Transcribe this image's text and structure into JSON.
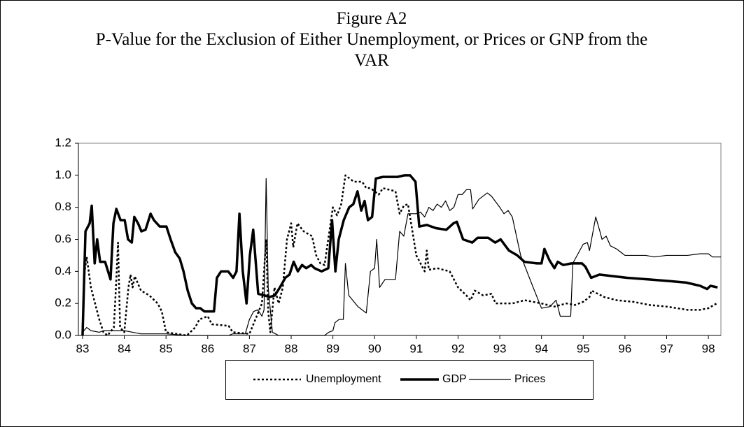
{
  "chart_data": {
    "type": "line",
    "title": [
      "Figure A2",
      "P-Value for the Exclusion of Either Unemployment, or Prices or GNP from the",
      "VAR"
    ],
    "xlim": [
      82.9,
      98.3
    ],
    "xticks": [
      83,
      84,
      85,
      86,
      87,
      88,
      89,
      90,
      91,
      92,
      93,
      94,
      95,
      96,
      97,
      98
    ],
    "ylim": [
      0,
      1.2
    ],
    "yticks": [
      {
        "value": 0,
        "label": "0.0"
      },
      0.2,
      0.4,
      0.6,
      0.8,
      {
        "value": 1,
        "label": "1.0"
      },
      1.2
    ],
    "grid": false,
    "legend": "bottom",
    "series": [
      {
        "name": "Unemployment",
        "color": "#000000",
        "style": "dotted",
        "x": [
          83.0,
          83.05,
          83.1,
          83.2,
          83.3,
          83.4,
          83.5,
          83.6,
          83.75,
          83.8,
          83.85,
          83.9,
          84.0,
          84.1,
          84.15,
          84.2,
          84.25,
          84.4,
          84.6,
          84.8,
          84.9,
          85.0,
          85.5,
          85.7,
          85.8,
          86.0,
          86.1,
          86.5,
          86.6,
          87.0,
          87.3,
          87.4,
          87.45,
          87.5,
          87.6,
          87.7,
          87.8,
          87.9,
          88.0,
          88.05,
          88.15,
          88.3,
          88.5,
          88.6,
          88.7,
          88.8,
          89.0,
          89.1,
          89.2,
          89.3,
          89.5,
          89.7,
          89.8,
          89.9,
          90.1,
          90.2,
          90.5,
          90.6,
          90.7,
          90.8,
          91.0,
          91.1,
          91.2,
          91.25,
          91.3,
          91.5,
          91.8,
          92.0,
          92.2,
          92.3,
          92.4,
          92.6,
          92.8,
          92.9,
          93.3,
          93.6,
          94.0,
          94.3,
          94.6,
          94.8,
          95.0,
          95.15,
          95.2,
          95.5,
          95.8,
          96.2,
          96.6,
          97.0,
          97.5,
          97.8,
          98.0,
          98.2
        ],
        "values": [
          0.02,
          0.4,
          0.49,
          0.3,
          0.2,
          0.1,
          0.02,
          0,
          0.05,
          0.3,
          0.58,
          0.05,
          0.02,
          0.3,
          0.38,
          0.3,
          0.37,
          0.28,
          0.25,
          0.2,
          0.15,
          0.02,
          0,
          0.05,
          0.1,
          0.12,
          0.07,
          0.06,
          0.02,
          0.01,
          0.2,
          0.6,
          0.15,
          0.02,
          0.3,
          0.2,
          0.3,
          0.6,
          0.7,
          0.55,
          0.7,
          0.65,
          0.62,
          0.5,
          0.45,
          0.44,
          0.8,
          0.75,
          0.82,
          1.0,
          0.96,
          0.96,
          0.92,
          0.92,
          0.88,
          0.92,
          0.9,
          0.76,
          0.81,
          0.82,
          0.5,
          0.45,
          0.4,
          0.53,
          0.41,
          0.42,
          0.4,
          0.3,
          0.25,
          0.22,
          0.28,
          0.25,
          0.26,
          0.2,
          0.2,
          0.22,
          0.2,
          0.18,
          0.2,
          0.19,
          0.21,
          0.24,
          0.28,
          0.24,
          0.22,
          0.21,
          0.19,
          0.18,
          0.16,
          0.16,
          0.17,
          0.2
        ]
      },
      {
        "name": "GDP",
        "color": "#000000",
        "style": "thick",
        "x": [
          83.0,
          83.07,
          83.17,
          83.22,
          83.29,
          83.35,
          83.42,
          83.54,
          83.67,
          83.74,
          83.81,
          83.91,
          84.01,
          84.09,
          84.18,
          84.24,
          84.33,
          84.41,
          84.51,
          84.63,
          84.71,
          84.85,
          85.01,
          85.11,
          85.22,
          85.33,
          85.42,
          85.52,
          85.62,
          85.72,
          85.82,
          85.92,
          86.15,
          86.22,
          86.32,
          86.49,
          86.61,
          86.69,
          86.76,
          86.84,
          86.93,
          87.01,
          87.09,
          87.21,
          87.36,
          87.48,
          87.61,
          87.73,
          87.86,
          87.96,
          88.06,
          88.16,
          88.26,
          88.36,
          88.48,
          88.56,
          88.73,
          88.89,
          88.98,
          89.06,
          89.14,
          89.26,
          89.39,
          89.49,
          89.59,
          89.68,
          89.76,
          89.84,
          89.94,
          90.03,
          90.2,
          90.55,
          90.72,
          90.85,
          90.98,
          91.07,
          91.25,
          91.47,
          91.72,
          91.89,
          91.97,
          92.12,
          92.34,
          92.47,
          92.72,
          92.89,
          93.02,
          93.22,
          93.42,
          93.59,
          93.89,
          94.0,
          94.07,
          94.19,
          94.31,
          94.39,
          94.52,
          94.72,
          94.97,
          95.05,
          95.19,
          95.39,
          95.72,
          96.05,
          96.55,
          97.05,
          97.47,
          97.8,
          97.97,
          98.05,
          98.22
        ],
        "values": [
          0,
          0.65,
          0.7,
          0.81,
          0.45,
          0.6,
          0.46,
          0.46,
          0.35,
          0.7,
          0.79,
          0.72,
          0.72,
          0.6,
          0.58,
          0.74,
          0.7,
          0.65,
          0.66,
          0.76,
          0.72,
          0.68,
          0.68,
          0.6,
          0.52,
          0.48,
          0.4,
          0.28,
          0.2,
          0.17,
          0.17,
          0.15,
          0.15,
          0.36,
          0.4,
          0.4,
          0.36,
          0.4,
          0.76,
          0.4,
          0.2,
          0.5,
          0.66,
          0.26,
          0.25,
          0.24,
          0.25,
          0.3,
          0.36,
          0.38,
          0.46,
          0.4,
          0.44,
          0.42,
          0.44,
          0.42,
          0.4,
          0.42,
          0.72,
          0.4,
          0.6,
          0.72,
          0.8,
          0.82,
          0.9,
          0.78,
          0.84,
          0.72,
          0.74,
          0.98,
          0.99,
          0.99,
          1.0,
          1.0,
          0.96,
          0.68,
          0.69,
          0.67,
          0.66,
          0.7,
          0.71,
          0.6,
          0.58,
          0.61,
          0.61,
          0.58,
          0.6,
          0.53,
          0.5,
          0.46,
          0.45,
          0.45,
          0.54,
          0.47,
          0.42,
          0.46,
          0.44,
          0.45,
          0.45,
          0.43,
          0.36,
          0.38,
          0.37,
          0.36,
          0.35,
          0.34,
          0.33,
          0.31,
          0.29,
          0.31,
          0.3
        ]
      },
      {
        "name": "Prices",
        "color": "#000000",
        "style": "thin",
        "x": [
          83.0,
          83.1,
          83.2,
          83.4,
          83.5,
          84.0,
          84.2,
          84.4,
          85.0,
          85.5,
          86.5,
          86.6,
          86.9,
          87.0,
          87.1,
          87.2,
          87.3,
          87.35,
          87.4,
          87.45,
          87.55,
          87.7,
          88.8,
          88.9,
          89.0,
          89.05,
          89.15,
          89.25,
          89.3,
          89.38,
          89.6,
          89.8,
          89.9,
          90.0,
          90.05,
          90.12,
          90.25,
          90.5,
          90.6,
          90.7,
          90.8,
          91.0,
          91.1,
          91.2,
          91.3,
          91.4,
          91.5,
          91.6,
          91.7,
          91.8,
          91.9,
          92.0,
          92.1,
          92.2,
          92.3,
          92.35,
          92.5,
          92.7,
          92.8,
          93.0,
          93.1,
          93.2,
          93.3,
          93.5,
          93.8,
          94.0,
          94.2,
          94.35,
          94.45,
          94.7,
          94.75,
          95.0,
          95.1,
          95.15,
          95.3,
          95.4,
          95.45,
          95.55,
          95.65,
          95.8,
          96.0,
          96.5,
          96.7,
          97.0,
          97.5,
          97.8,
          98.0,
          98.1,
          98.3
        ],
        "values": [
          0.02,
          0.05,
          0.03,
          0.02,
          0.03,
          0.03,
          0.02,
          0.01,
          0.01,
          0,
          0,
          0.01,
          0.01,
          0.1,
          0.15,
          0.16,
          0.12,
          0.16,
          0.98,
          0.3,
          0.02,
          0,
          0,
          0.02,
          0.03,
          0.08,
          0.1,
          0.1,
          0.45,
          0.25,
          0.18,
          0.14,
          0.4,
          0.42,
          0.6,
          0.3,
          0.35,
          0.35,
          0.65,
          0.62,
          0.76,
          0.76,
          0.77,
          0.74,
          0.8,
          0.78,
          0.82,
          0.8,
          0.84,
          0.78,
          0.8,
          0.88,
          0.88,
          0.91,
          0.91,
          0.79,
          0.85,
          0.89,
          0.87,
          0.8,
          0.76,
          0.78,
          0.74,
          0.5,
          0.3,
          0.17,
          0.18,
          0.22,
          0.12,
          0.12,
          0.45,
          0.57,
          0.58,
          0.53,
          0.74,
          0.65,
          0.6,
          0.62,
          0.56,
          0.54,
          0.5,
          0.5,
          0.49,
          0.5,
          0.5,
          0.51,
          0.51,
          0.49,
          0.49
        ]
      }
    ]
  }
}
